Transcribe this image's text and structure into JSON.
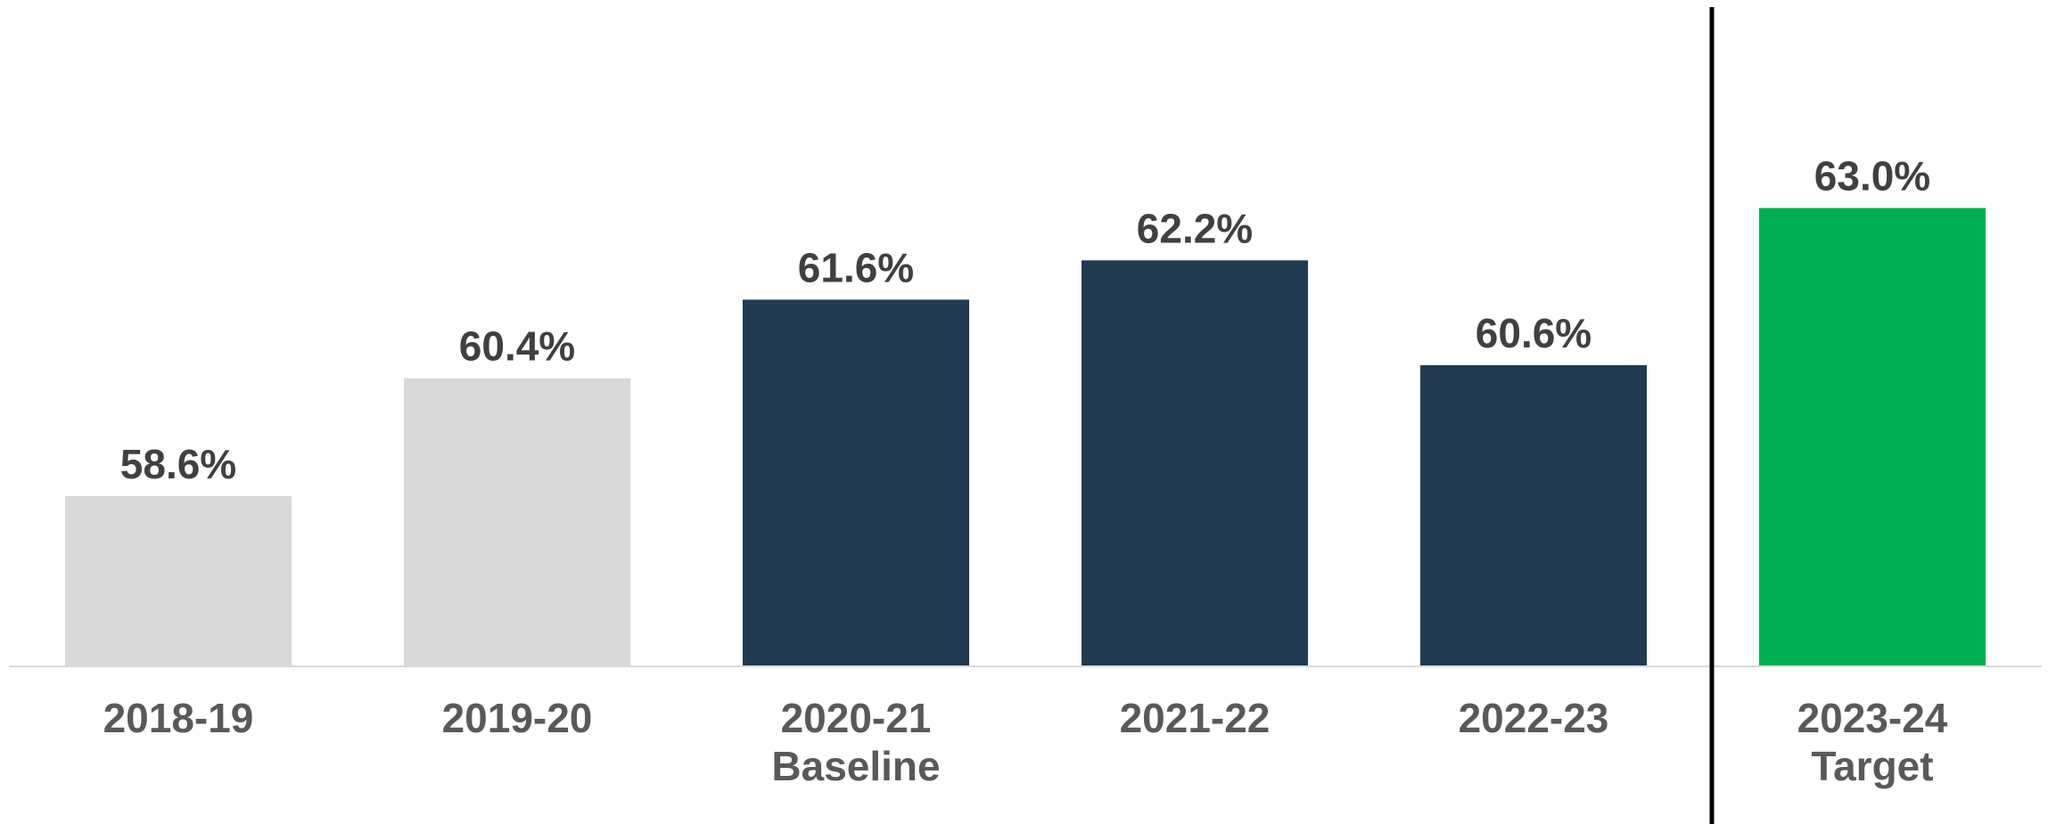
{
  "chart_data": {
    "type": "bar",
    "title": "",
    "xlabel": "",
    "ylabel": "",
    "categories": [
      [
        "2018-19"
      ],
      [
        "2019-20"
      ],
      [
        "2020-21",
        "Baseline"
      ],
      [
        "2021-22"
      ],
      [
        "2022-23"
      ],
      [
        "2023-24",
        "Target"
      ]
    ],
    "values": [
      58.6,
      60.4,
      61.6,
      62.2,
      60.6,
      63.0
    ],
    "value_labels": [
      "58.6%",
      "60.4%",
      "61.6%",
      "62.2%",
      "60.6%",
      "63.0%"
    ],
    "bar_colors": [
      "#d9d9d9",
      "#d9d9d9",
      "#213a4f",
      "#213a4f",
      "#213a4f",
      "#00b050"
    ],
    "ylim": [
      56,
      64
    ],
    "grid": false,
    "legend": false,
    "separator_before_index": 5
  }
}
